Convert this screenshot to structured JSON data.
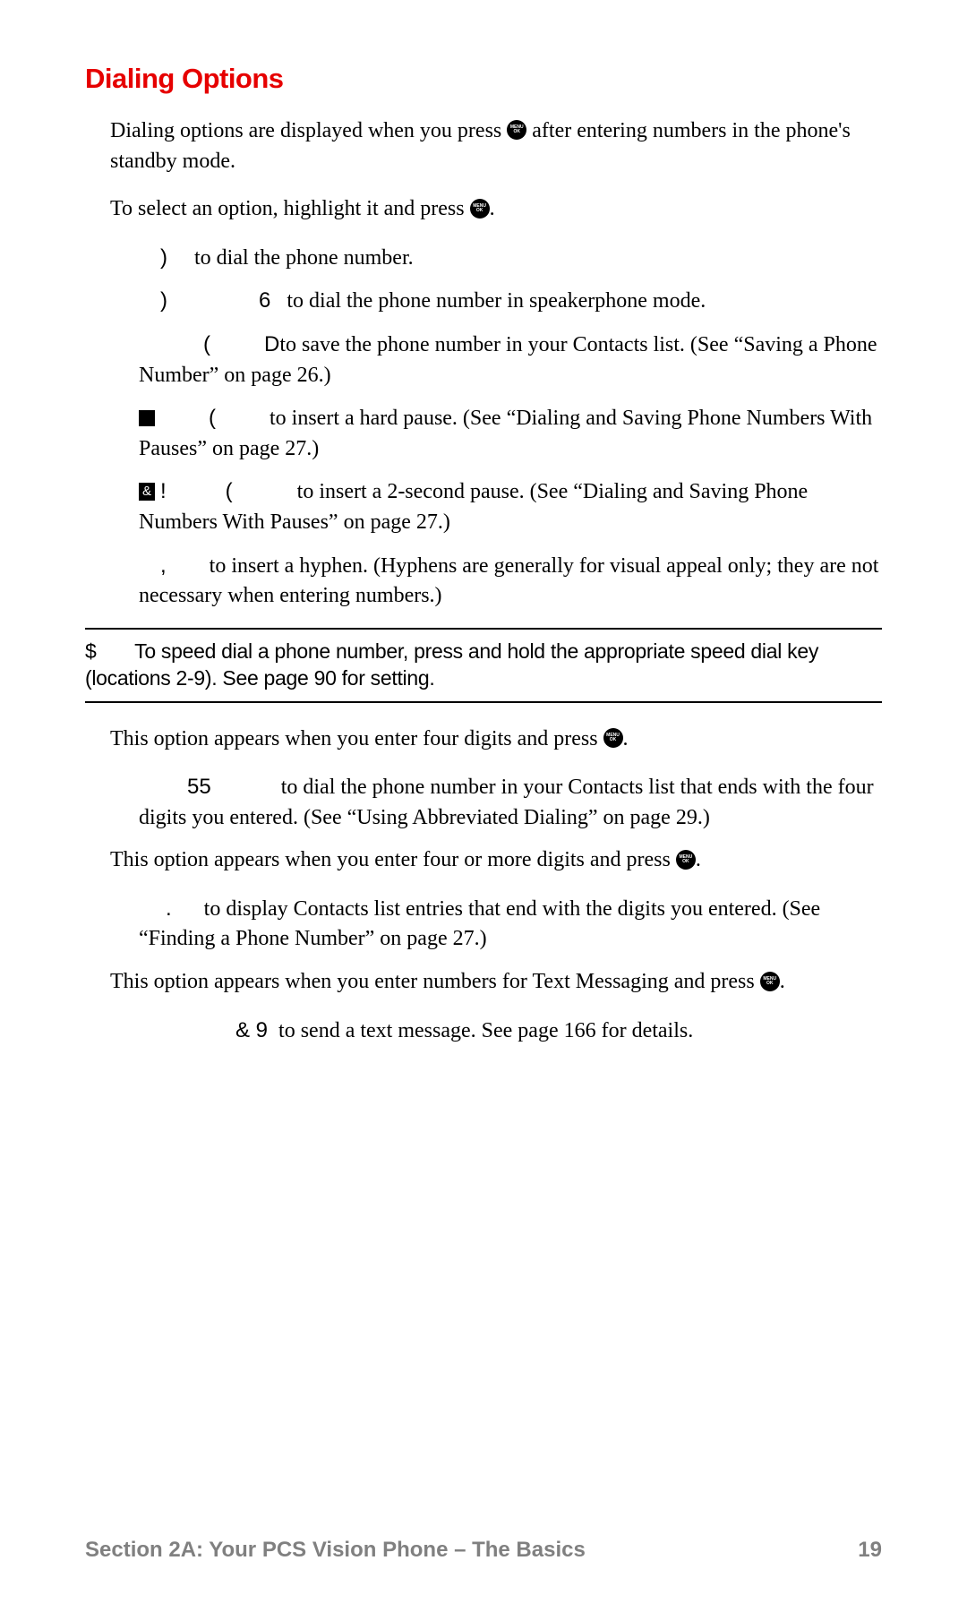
{
  "title": "Dialing Options",
  "intro_part1": "Dialing options are displayed when you press ",
  "intro_part2": " after entering numbers in the phone's standby mode.",
  "select_part1": "To select an option, highlight it and press ",
  "select_part2": ".",
  "items": {
    "i1_a": ")",
    "i1_b": "to dial the phone number.",
    "i2_a": ")",
    "i2_b": "6",
    "i2_c": "to dial the phone number in speakerphone mode.",
    "i3_a": "(",
    "i3_b": "D",
    "i3_c": "to save the phone number in your Contacts list. (See “Saving a Phone Number” on page 26.)",
    "i4_a": "(",
    "i4_b": "to insert a hard pause. (See “Dialing and Saving Phone Numbers With Pauses” on page 27.)",
    "i5_a": "!",
    "i5_b": "(",
    "i5_c": "to insert a 2-second pause. (See “Dialing and Saving Phone Numbers With Pauses” on page 27.)",
    "i6_a": ",",
    "i6_b": "to insert a hyphen. (Hyphens are generally for visual appeal only; they are not necessary when entering numbers.)"
  },
  "tip_marker": "$",
  "tip_text": "To speed dial a phone number, press and hold the appropriate speed dial key (locations 2-9). See page 90 for setting.",
  "opt1_intro_a": "This option appears when you enter four digits and press ",
  "opt1_intro_b": ".",
  "opt1_item_a": "55",
  "opt1_item_b": "to dial the phone number in your Contacts list that ends with the four digits you entered. (See “Using Abbreviated Dialing” on page 29.)",
  "opt2_intro_a": "This option appears when you enter four or more digits and press ",
  "opt2_intro_b": ".",
  "opt2_item_a": ".",
  "opt2_item_b": "to display Contacts list entries that end with the digits you entered. (See “Finding a Phone Number” on page 27.)",
  "opt3_intro_a": "This option appears when you enter numbers for Text Messaging and press ",
  "opt3_intro_b": ".",
  "opt3_item_a": "& 9",
  "opt3_item_b": "to send a text message. See page 166 for details.",
  "footer_section": "Section 2A: Your PCS Vision Phone – The Basics",
  "footer_page": "19",
  "colors": {
    "title": "#e60000",
    "body": "#000000",
    "footer": "#808080",
    "background": "#ffffff"
  }
}
